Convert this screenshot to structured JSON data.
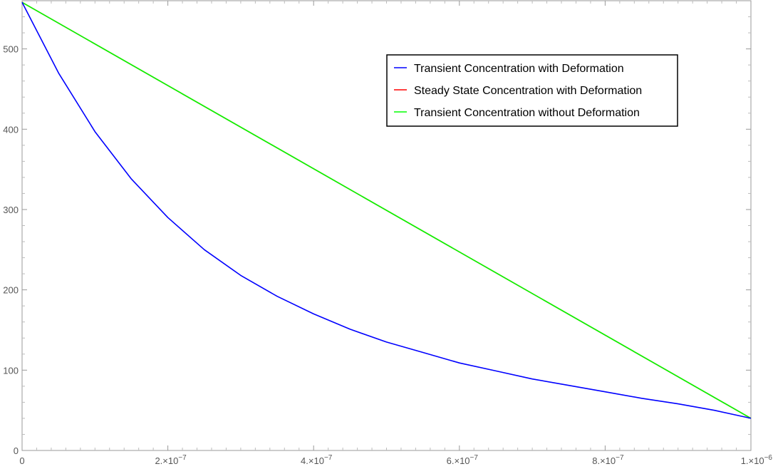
{
  "chart_data": {
    "type": "line",
    "title": "",
    "xlabel": "",
    "ylabel": "",
    "xlim": [
      0,
      1e-06
    ],
    "ylim": [
      0,
      560
    ],
    "x_ticks": [
      {
        "value": 0,
        "label": "0"
      },
      {
        "value": 2e-07,
        "mantissa": "2.×10",
        "exp": "−7"
      },
      {
        "value": 4e-07,
        "mantissa": "4.×10",
        "exp": "−7"
      },
      {
        "value": 6e-07,
        "mantissa": "6.×10",
        "exp": "−7"
      },
      {
        "value": 8e-07,
        "mantissa": "8.×10",
        "exp": "−7"
      },
      {
        "value": 1e-06,
        "mantissa": "1.×10",
        "exp": "−6"
      }
    ],
    "y_ticks": [
      {
        "value": 0,
        "label": "0"
      },
      {
        "value": 100,
        "label": "100"
      },
      {
        "value": 200,
        "label": "200"
      },
      {
        "value": 300,
        "label": "300"
      },
      {
        "value": 400,
        "label": "400"
      },
      {
        "value": 500,
        "label": "500"
      }
    ],
    "grid": false,
    "legend_position": "top-right",
    "series": [
      {
        "name": "Transient Concentration with Deformation",
        "color": "#0000ff",
        "x": [
          0,
          5e-08,
          1e-07,
          1.5e-07,
          2e-07,
          2.5e-07,
          3e-07,
          3.5e-07,
          4e-07,
          4.5e-07,
          5e-07,
          5.5e-07,
          6e-07,
          6.5e-07,
          7e-07,
          7.5e-07,
          8e-07,
          8.5e-07,
          9e-07,
          9.5e-07,
          1e-06
        ],
        "y": [
          558,
          470,
          397,
          338,
          290,
          250,
          218,
          192,
          170,
          151,
          135,
          122,
          109,
          99,
          89,
          81,
          73,
          65,
          58,
          50,
          40
        ]
      },
      {
        "name": "Steady State Concentration with Deformation",
        "color": "#ff0000",
        "x": [
          0,
          1e-06
        ],
        "y": [
          558,
          40
        ]
      },
      {
        "name": "Transient Concentration without Deformation",
        "color": "#00ff00",
        "x": [
          0,
          1e-06
        ],
        "y": [
          558,
          40
        ]
      }
    ]
  }
}
